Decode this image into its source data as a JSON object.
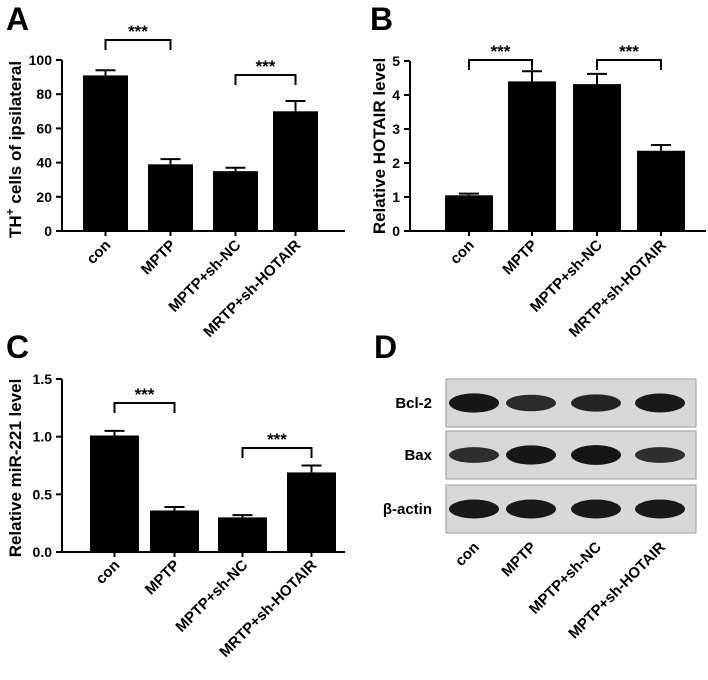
{
  "chart_data": [
    {
      "type": "bar",
      "panel": "A",
      "ylabel_main": "TH",
      "ylabel_sup": "+",
      "ylabel_rest": " cells of ipsilateral",
      "categories": [
        "con",
        "MPTP",
        "MPTP+sh-NC",
        "MRTP+sh-HOTAIR"
      ],
      "values": [
        91,
        39,
        35,
        70
      ],
      "errors": [
        3,
        3,
        2,
        6
      ],
      "ylim": [
        0,
        100
      ],
      "yticks": [
        "0",
        "20",
        "40",
        "60",
        "80",
        "100"
      ],
      "significance": [
        {
          "from": 0,
          "to": 1,
          "label": "***"
        },
        {
          "from": 2,
          "to": 3,
          "label": "***"
        }
      ]
    },
    {
      "type": "bar",
      "panel": "B",
      "ylabel": "Relative HOTAIR level",
      "categories": [
        "con",
        "MPTP",
        "MPTP+sh-NC",
        "MRTP+sh-HOTAIR"
      ],
      "values": [
        1.05,
        4.4,
        4.32,
        2.36
      ],
      "errors": [
        0.05,
        0.3,
        0.3,
        0.17
      ],
      "ylim": [
        0,
        5
      ],
      "yticks": [
        "0",
        "1",
        "2",
        "3",
        "4",
        "5"
      ],
      "significance": [
        {
          "from": 0,
          "to": 1,
          "label": "***"
        },
        {
          "from": 2,
          "to": 3,
          "label": "***"
        }
      ]
    },
    {
      "type": "bar",
      "panel": "C",
      "ylabel": "Relative miR-221 level",
      "categories": [
        "con",
        "MPTP",
        "MPTP+sh-NC",
        "MRTP+sh-HOTAIR"
      ],
      "values": [
        1.01,
        0.36,
        0.3,
        0.69
      ],
      "errors": [
        0.04,
        0.03,
        0.02,
        0.06
      ],
      "ylim": [
        0,
        1.5
      ],
      "yticks": [
        "0.0",
        "0.5",
        "1.0",
        "1.5"
      ],
      "significance": [
        {
          "from": 0,
          "to": 1,
          "label": "***"
        },
        {
          "from": 2,
          "to": 3,
          "label": "***"
        }
      ]
    }
  ],
  "blot": {
    "panel": "D",
    "rows": [
      "Bcl-2",
      "Bax",
      "β-actin"
    ],
    "lanes": [
      "con",
      "MPTP",
      "MPTP+sh-NC",
      "MPTP+sh-HOTAIR"
    ],
    "intensity": [
      [
        0.95,
        0.75,
        0.8,
        0.92
      ],
      [
        0.7,
        0.95,
        0.98,
        0.7
      ],
      [
        0.92,
        0.92,
        0.92,
        0.92
      ]
    ]
  }
}
